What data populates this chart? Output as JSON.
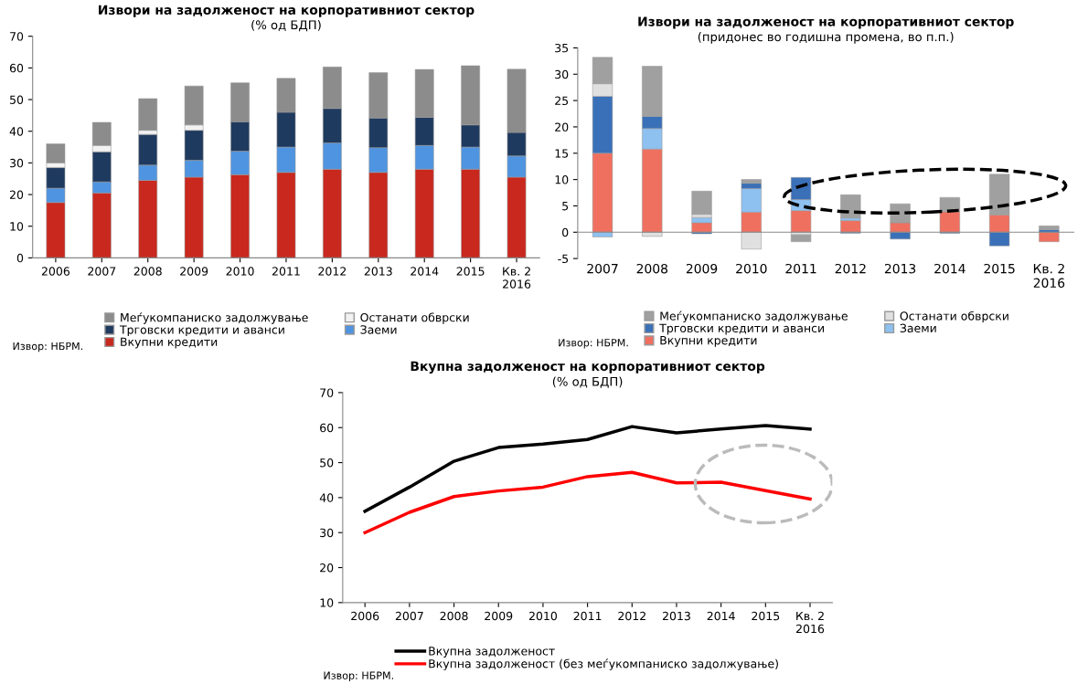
{
  "chart_data": [
    {
      "type": "bar",
      "stacked": true,
      "title": "Извори на задолженост на корпоративниот сектор",
      "subtitle": "(% од БДП)",
      "categories": [
        "2006",
        "2007",
        "2008",
        "2009",
        "2010",
        "2011",
        "2012",
        "2013",
        "2014",
        "2015",
        "Кв. 2\n2016"
      ],
      "series": [
        {
          "name": "Вкупни кредити",
          "color": "#c8281e",
          "values": [
            17.5,
            20.5,
            24.5,
            25.5,
            26.3,
            27,
            28,
            27,
            28,
            28,
            25.5
          ]
        },
        {
          "name": "Заеми",
          "color": "#4f94e0",
          "values": [
            4.5,
            3.5,
            4.8,
            5.3,
            7.4,
            8,
            8.3,
            7.8,
            7.5,
            7,
            6.7
          ]
        },
        {
          "name": "Трговски кредити и аванси",
          "color": "#1f3a5f",
          "values": [
            6.5,
            9.5,
            9.7,
            9.5,
            9.3,
            11,
            10.9,
            9.4,
            8.9,
            7,
            7.4
          ]
        },
        {
          "name": "Останати обврски",
          "color": "#f2f2f2",
          "values": [
            1.5,
            2,
            1.3,
            1.7,
            null,
            null,
            null,
            null,
            null,
            null,
            null
          ]
        },
        {
          "name": "Меѓукомпаниско задолжување",
          "color": "#8c8c8c",
          "values": [
            6,
            7.3,
            10,
            12.3,
            12.3,
            10.7,
            13.1,
            14.3,
            15.1,
            18.7,
            20
          ]
        }
      ],
      "ylim": [
        0,
        70
      ],
      "yticks": [
        0,
        10,
        20,
        30,
        40,
        50,
        60,
        70
      ],
      "grid": false,
      "legend": "bottom",
      "marker": "square",
      "annotations": [
        "Извор: НБРМ."
      ]
    },
    {
      "type": "bar",
      "stacked": true,
      "title": "Извори на задолженост на корпоративниот сектор",
      "subtitle": "(придонес во годишна промена, во п.п.)",
      "categories": [
        "2007",
        "2008",
        "2009",
        "2010",
        "2011",
        "2012",
        "2013",
        "2014",
        "2015",
        "Кв. 2\n2016"
      ],
      "series": [
        {
          "name": "Вкупни кредити",
          "color": "#f07060",
          "values": [
            15,
            15.8,
            1.8,
            3.8,
            4.1,
            2.2,
            1.8,
            3.9,
            3.3,
            -1.8
          ]
        },
        {
          "name": "Заеми",
          "color": "#8ec0f0",
          "values": [
            -0.9,
            3.9,
            1.0,
            4.5,
            2.1,
            0.5,
            null,
            null,
            null,
            null
          ]
        },
        {
          "name": "Трговски кредити и аванси",
          "color": "#3a70b8",
          "values": [
            10.8,
            2.3,
            -0.3,
            1.0,
            4.2,
            -0.2,
            -1.3,
            -0.2,
            -2.6,
            0.5
          ]
        },
        {
          "name": "Останати обврски",
          "color": "#e0e0e0",
          "values": [
            2.4,
            -0.8,
            0.6,
            -3.2,
            -0.5,
            null,
            null,
            null,
            null,
            null
          ]
        },
        {
          "name": "Меѓукомпаниско задолжување",
          "color": "#a0a0a0",
          "values": [
            5,
            9.5,
            4.4,
            0.7,
            -1.3,
            4.4,
            3.6,
            2.7,
            7.7,
            0.7
          ]
        }
      ],
      "ylim": [
        -5,
        35
      ],
      "yticks": [
        -5,
        0,
        5,
        10,
        15,
        20,
        25,
        30,
        35
      ],
      "grid": false,
      "legend": "bottom",
      "marker": "square",
      "annotations": [
        "Извор: НБРМ."
      ]
    },
    {
      "type": "line",
      "title": "Вкупна задолженост на корпоративниот сектор",
      "subtitle": "(% од БДП)",
      "categories": [
        "2006",
        "2007",
        "2008",
        "2009",
        "2010",
        "2011",
        "2012",
        "2013",
        "2014",
        "2015",
        "Кв. 2\n2016"
      ],
      "series": [
        {
          "name": "Вкупна задолженост",
          "color": "#000000",
          "values": [
            36.1,
            43,
            50.4,
            54.3,
            55.3,
            56.6,
            60.3,
            58.5,
            59.6,
            60.6,
            59.6
          ]
        },
        {
          "name": "Вкупна задолженост (без меѓукомпаниско задолжување)",
          "color": "#ff0000",
          "values": [
            30,
            35.8,
            40.3,
            41.9,
            43,
            46,
            47.2,
            44.2,
            44.4,
            42,
            39.6
          ]
        }
      ],
      "ylim": [
        10,
        70
      ],
      "yticks": [
        10,
        20,
        30,
        40,
        50,
        60,
        70
      ],
      "grid": false,
      "legend": "bottom",
      "marker": "none",
      "line_style": "solid",
      "annotations": [
        "Извор: НБРМ."
      ]
    }
  ]
}
